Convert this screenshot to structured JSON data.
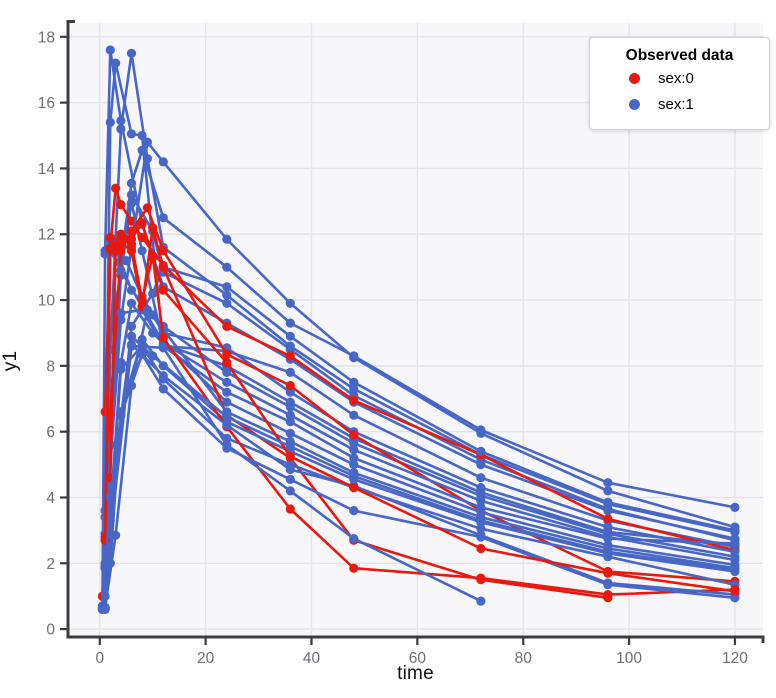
{
  "legend": {
    "title": "Observed data",
    "items": [
      {
        "label": "sex:0",
        "color": "#e8190e"
      },
      {
        "label": "sex:1",
        "color": "#4766c6"
      }
    ]
  },
  "chart_data": {
    "type": "line",
    "title": "",
    "xlabel": "time",
    "ylabel": "y1",
    "xlim": [
      -6,
      125.3
    ],
    "ylim": [
      -0.24,
      18.42
    ],
    "x_ticks": [
      0,
      20,
      40,
      60,
      80,
      100,
      120
    ],
    "y_ticks": [
      0,
      2,
      4,
      6,
      8,
      10,
      12,
      14,
      16,
      18
    ],
    "grid": true,
    "legend_position": "top-right",
    "group_colors": {
      "0": "#e8190e",
      "1": "#4766c6"
    },
    "series": [
      {
        "id": "s01",
        "sex": 1,
        "times": [
          0.5,
          1,
          2,
          4,
          8,
          12,
          24,
          36,
          48,
          72,
          96,
          120
        ],
        "values": [
          0.65,
          11.5,
          17.6,
          15.45,
          12.3,
          10.4,
          9.3,
          8.2,
          6.9,
          5.0,
          3.6,
          2.75
        ]
      },
      {
        "id": "s02",
        "sex": 1,
        "times": [
          1,
          2,
          3,
          6,
          8,
          12,
          24,
          36,
          48,
          72,
          96,
          120
        ],
        "values": [
          3.6,
          15.4,
          17.2,
          15.05,
          15.0,
          8.6,
          8.45,
          7.8,
          6.5,
          4.6,
          3.3,
          2.5
        ]
      },
      {
        "id": "s03",
        "sex": 1,
        "times": [
          1,
          2,
          4,
          6,
          9,
          12,
          24,
          36,
          48,
          72,
          96,
          120
        ],
        "values": [
          0.6,
          8.5,
          15.2,
          17.5,
          14.3,
          11.6,
          10.15,
          8.6,
          7.3,
          5.3,
          3.8,
          2.95
        ]
      },
      {
        "id": "s04",
        "sex": 1,
        "times": [
          0.5,
          1,
          4,
          6,
          10,
          12,
          24,
          36,
          48,
          72,
          96,
          120
        ],
        "values": [
          0.7,
          1.9,
          10.75,
          13.2,
          12.1,
          10.85,
          9.9,
          8.5,
          7.1,
          5.15,
          3.65,
          2.7
        ]
      },
      {
        "id": "s05",
        "sex": 1,
        "times": [
          1,
          3,
          6,
          8,
          12,
          24,
          36,
          48,
          72,
          96,
          120
        ],
        "values": [
          2.0,
          9.85,
          12.95,
          11.5,
          8.65,
          8.0,
          6.9,
          5.8,
          4.15,
          2.95,
          2.55
        ]
      },
      {
        "id": "s06",
        "sex": 1,
        "times": [
          0.5,
          2,
          4,
          6,
          8,
          12,
          24,
          36,
          48,
          72,
          96,
          120
        ],
        "values": [
          0.6,
          5.6,
          11.2,
          13.55,
          14.55,
          12.5,
          11.0,
          9.3,
          8.3,
          6.05,
          4.45,
          3.7
        ]
      },
      {
        "id": "s07",
        "sex": 0,
        "times": [
          1,
          2,
          3,
          4,
          6,
          8,
          12,
          24,
          36,
          48,
          72,
          96,
          120
        ],
        "values": [
          6.6,
          11.6,
          13.4,
          12.9,
          12.4,
          11.9,
          11.05,
          9.2,
          8.3,
          6.95,
          5.3,
          3.35,
          2.4
        ]
      },
      {
        "id": "s08",
        "sex": 1,
        "times": [
          1,
          4,
          6,
          9,
          12,
          24,
          36,
          48,
          72,
          96,
          120
        ],
        "values": [
          2.9,
          9.4,
          11.6,
          14.8,
          14.2,
          11.85,
          9.9,
          8.25,
          5.95,
          4.2,
          3.1
        ]
      },
      {
        "id": "s09",
        "sex": 1,
        "times": [
          0.5,
          1,
          2,
          5,
          8,
          12,
          24,
          36,
          48,
          72,
          96,
          120
        ],
        "values": [
          0.63,
          3.4,
          11.8,
          11.2,
          10.1,
          9.0,
          8.55,
          7.2,
          6.0,
          4.3,
          3.1,
          2.35
        ]
      },
      {
        "id": "s10",
        "sex": 1,
        "times": [
          1,
          3,
          6,
          10,
          12,
          24,
          36,
          48,
          72,
          96,
          120
        ],
        "values": [
          11.4,
          11.55,
          10.3,
          9.55,
          9.2,
          7.8,
          6.75,
          5.65,
          4.05,
          2.9,
          2.2
        ]
      },
      {
        "id": "s11",
        "sex": 1,
        "times": [
          1,
          2,
          6,
          10,
          12,
          24,
          36,
          48,
          72,
          96,
          120
        ],
        "values": [
          0.62,
          2.85,
          9.2,
          10.2,
          11.0,
          10.4,
          8.9,
          7.5,
          5.4,
          3.85,
          3.0
        ]
      },
      {
        "id": "s12",
        "sex": 0,
        "times": [
          0.5,
          2,
          4,
          6,
          9,
          12,
          24,
          36,
          48,
          72,
          96,
          120
        ],
        "values": [
          1.0,
          6.55,
          11.5,
          12.1,
          12.8,
          11.5,
          8.35,
          7.4,
          5.9,
          3.6,
          1.75,
          1.45
        ]
      },
      {
        "id": "s13",
        "sex": 1,
        "times": [
          0.5,
          2,
          4,
          8,
          12,
          24,
          36,
          48,
          72,
          96,
          120
        ],
        "values": [
          0.66,
          11.5,
          10.9,
          9.8,
          8.7,
          7.5,
          6.5,
          5.45,
          3.9,
          2.8,
          2.1
        ]
      },
      {
        "id": "s14",
        "sex": 1,
        "times": [
          1,
          2,
          4,
          8,
          12,
          24,
          36,
          48,
          72,
          96,
          120
        ],
        "values": [
          1.85,
          5.6,
          9.6,
          9.7,
          8.6,
          7.2,
          6.3,
          5.2,
          3.7,
          2.75,
          2.6
        ]
      },
      {
        "id": "s15",
        "sex": 1,
        "times": [
          0.5,
          2,
          4,
          6,
          10,
          24,
          36,
          48,
          72,
          96,
          120
        ],
        "values": [
          0.6,
          3.55,
          8.1,
          9.9,
          9.0,
          6.9,
          5.95,
          5.0,
          3.55,
          2.55,
          1.95
        ]
      },
      {
        "id": "s16",
        "sex": 0,
        "times": [
          1,
          2,
          3,
          4,
          6,
          8,
          10,
          12,
          24,
          36,
          48,
          72,
          96
        ],
        "values": [
          2.8,
          11.9,
          11.6,
          11.75,
          11.5,
          9.8,
          12.2,
          11.0,
          6.5,
          5.2,
          2.7,
          1.5,
          0.95
        ]
      },
      {
        "id": "s17",
        "sex": 1,
        "times": [
          1,
          3,
          6,
          9,
          12,
          24,
          36,
          48,
          72,
          96,
          120
        ],
        "values": [
          0.65,
          2.85,
          7.4,
          9.7,
          9.1,
          6.6,
          5.7,
          4.75,
          3.4,
          2.45,
          1.85
        ]
      },
      {
        "id": "s18",
        "sex": 1,
        "times": [
          2,
          4,
          8,
          12,
          24,
          36,
          48,
          72,
          96,
          120
        ],
        "values": [
          2.0,
          6.6,
          8.8,
          8.0,
          6.3,
          5.4,
          4.55,
          3.25,
          2.3,
          1.75
        ]
      },
      {
        "id": "s19",
        "sex": 1,
        "times": [
          0.5,
          1,
          4,
          8,
          12,
          24,
          36,
          48,
          72,
          96,
          120
        ],
        "values": [
          0.62,
          1.0,
          7.9,
          8.6,
          7.6,
          5.8,
          5.0,
          4.3,
          3.05,
          2.2,
          1.35
        ]
      },
      {
        "id": "s20",
        "sex": 0,
        "times": [
          2,
          3,
          4,
          6,
          8,
          10,
          12,
          24,
          36,
          48,
          72,
          96,
          120
        ],
        "values": [
          4.6,
          11.5,
          11.9,
          11.7,
          10.0,
          11.35,
          8.85,
          6.15,
          3.65,
          1.85,
          1.55,
          1.05,
          1.2
        ]
      },
      {
        "id": "s21",
        "sex": 1,
        "times": [
          1,
          2,
          6,
          12,
          24,
          36,
          48,
          72
        ],
        "values": [
          0.6,
          2.85,
          8.6,
          8.55,
          5.6,
          4.2,
          2.75,
          0.85
        ]
      },
      {
        "id": "s22",
        "sex": 1,
        "times": [
          2,
          6,
          12,
          24,
          36,
          48,
          72,
          96,
          120
        ],
        "values": [
          3.3,
          8.65,
          7.7,
          6.2,
          4.85,
          4.35,
          2.85,
          1.4,
          1.05
        ]
      },
      {
        "id": "s23",
        "sex": 1,
        "times": [
          1,
          4,
          8,
          12,
          24,
          36,
          48,
          72,
          96,
          120
        ],
        "values": [
          0.66,
          6.5,
          8.35,
          7.3,
          5.5,
          4.55,
          3.6,
          2.8,
          1.35,
          0.95
        ]
      },
      {
        "id": "s24",
        "sex": 0,
        "times": [
          1,
          2,
          4,
          6,
          8,
          10,
          12,
          24,
          36,
          48,
          72,
          96,
          120
        ],
        "values": [
          2.7,
          11.55,
          12.0,
          11.85,
          12.35,
          11.3,
          10.3,
          8.1,
          5.25,
          4.3,
          2.45,
          1.7,
          1.15
        ]
      },
      {
        "id": "s25",
        "sex": 1,
        "times": [
          0.5,
          2,
          6,
          10,
          24,
          36,
          48,
          72,
          96,
          120
        ],
        "values": [
          0.64,
          4.0,
          8.9,
          8.3,
          6.45,
          5.55,
          4.65,
          3.3,
          2.35,
          1.8
        ]
      }
    ]
  },
  "style": {
    "panel_bg": "#f7f7fa",
    "grid_color": "#e3e3e8",
    "spine_color": "#3c3c3c",
    "tick_label_color": "#6d7076",
    "marker_radius": 4.6,
    "line_width": 2.6
  }
}
